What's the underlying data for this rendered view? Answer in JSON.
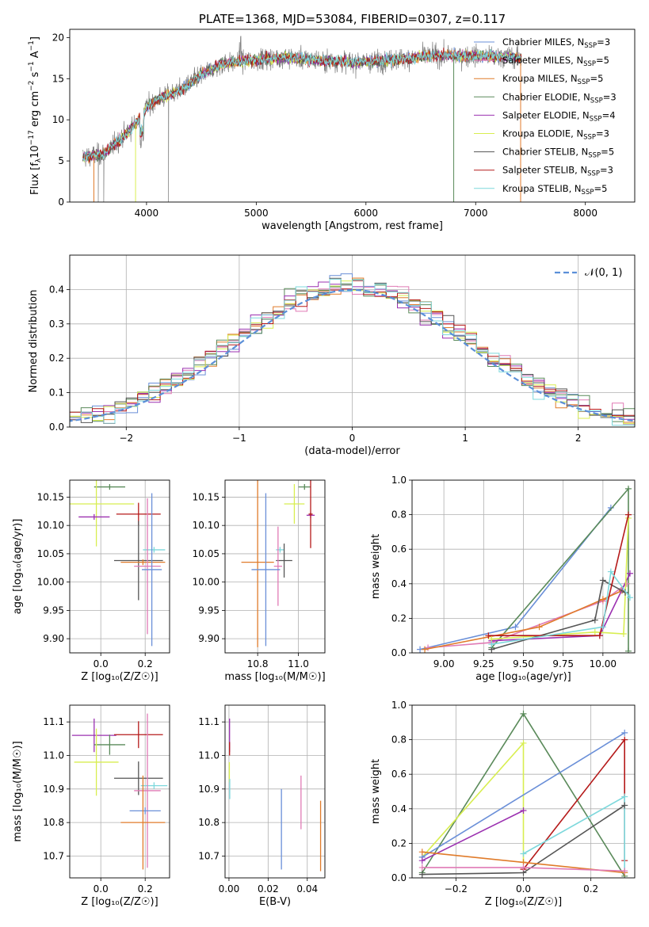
{
  "colors": {
    "chabrier_miles": "#6a8fd8",
    "salpeter_miles": "#e07ab5",
    "kroupa_miles": "#e07b2a",
    "chabrier_elodie": "#5a8a5a",
    "salpeter_elodie": "#9b30b0",
    "kroupa_elodie": "#d8ee50",
    "chabrier_stelib": "#555555",
    "salpeter_stelib": "#b51a1a",
    "kroupa_stelib": "#7dd8dc",
    "normal": "#5b8fd8"
  },
  "chart_data": [
    {
      "id": "spectrum",
      "type": "line",
      "title": "PLATE=1368, MJD=53084, FIBERID=0307, z=0.117",
      "xlabel": "wavelength [Angstrom, rest frame]",
      "ylabel": "Flux [f",
      "ylabel_parts": [
        "Flux [f",
        "λ",
        "10",
        "−17",
        " erg cm",
        "−2",
        " s",
        "−1",
        " A",
        "−1",
        "]"
      ],
      "xlim": [
        3300,
        8450
      ],
      "ylim": [
        0,
        21
      ],
      "xticks": [
        4000,
        5000,
        6000,
        7000,
        8000
      ],
      "yticks": [
        0,
        5,
        10,
        15,
        20
      ],
      "legend_position": "upper-right",
      "legend": [
        {
          "label": "Chabrier MILES, N",
          "n": "3",
          "color_key": "chabrier_miles"
        },
        {
          "label": "Salpeter MILES, N",
          "n": "5",
          "color_key": "salpeter_miles"
        },
        {
          "label": "Kroupa MILES, N",
          "n": "5",
          "color_key": "kroupa_miles"
        },
        {
          "label": "Chabrier ELODIE, N",
          "n": "3",
          "color_key": "chabrier_elodie"
        },
        {
          "label": "Salpeter ELODIE, N",
          "n": "4",
          "color_key": "salpeter_elodie"
        },
        {
          "label": "Kroupa ELODIE, N",
          "n": "3",
          "color_key": "kroupa_elodie"
        },
        {
          "label": "Chabrier STELIB, N",
          "n": "5",
          "color_key": "chabrier_stelib"
        },
        {
          "label": "Salpeter STELIB, N",
          "n": "3",
          "color_key": "salpeter_stelib"
        },
        {
          "label": "Kroupa STELIB, N",
          "n": "5",
          "color_key": "kroupa_stelib"
        }
      ],
      "legend_subscript": "SSP",
      "continuum_knots": [
        [
          3420,
          5.5
        ],
        [
          3600,
          5.8
        ],
        [
          3750,
          7.5
        ],
        [
          3900,
          9.5
        ],
        [
          4000,
          11.5
        ],
        [
          4100,
          12.5
        ],
        [
          4300,
          13.5
        ],
        [
          4500,
          15.5
        ],
        [
          4700,
          16.8
        ],
        [
          5000,
          17.3
        ],
        [
          5300,
          17.6
        ],
        [
          5600,
          17.2
        ],
        [
          5900,
          17.0
        ],
        [
          6200,
          17.2
        ],
        [
          6600,
          17.8
        ],
        [
          7000,
          17.8
        ],
        [
          7400,
          17.6
        ],
        [
          7420,
          17.5
        ]
      ],
      "drops_model": [
        3520,
        3900,
        6800,
        7410
      ],
      "drops_data": [
        3560,
        3610,
        4200
      ]
    },
    {
      "id": "residuals",
      "type": "histogram",
      "xlabel": "(data-model)/error",
      "ylabel": "Normed distribution",
      "xlim": [
        -2.5,
        2.5
      ],
      "ylim": [
        0,
        0.5
      ],
      "xticks": [
        -2,
        -1,
        0,
        1,
        2
      ],
      "yticks": [
        0.0,
        0.1,
        0.2,
        0.3,
        0.4
      ],
      "grid": true,
      "legend_position": "upper-right",
      "legend_label": "𝒩(0, 1)",
      "bin_width": 0.1
    },
    {
      "id": "age_vs_Z",
      "type": "errorbar",
      "xlabel": "Z [log₁₀(Z/Z☉)]",
      "ylabel": "age  [log₁₀(age/yr)]",
      "xlim": [
        -0.14,
        0.31
      ],
      "ylim": [
        9.875,
        10.18
      ],
      "xticks": [
        0.0,
        0.2
      ],
      "yticks": [
        9.9,
        9.95,
        10.0,
        10.05,
        10.1,
        10.15
      ],
      "grid": true,
      "points": [
        {
          "key": "chabrier_elodie",
          "x": 0.04,
          "xerr": 0.07,
          "y": 10.168,
          "yerr": 0.005
        },
        {
          "key": "kroupa_elodie",
          "x": -0.02,
          "xerr": 0.17,
          "y": 10.138,
          "yerr": 0.075
        },
        {
          "key": "salpeter_elodie",
          "x": -0.03,
          "xerr": 0.07,
          "y": 10.115,
          "yerr": 0.005
        },
        {
          "key": "salpeter_stelib",
          "x": 0.17,
          "xerr": 0.1,
          "y": 10.12,
          "yerr": 0.02
        },
        {
          "key": "kroupa_stelib",
          "x": 0.24,
          "xerr": 0.05,
          "y": 10.057,
          "yerr": 0.005
        },
        {
          "key": "chabrier_stelib",
          "x": 0.17,
          "xerr": 0.11,
          "y": 10.038,
          "yerr": 0.07
        },
        {
          "key": "kroupa_miles",
          "x": 0.19,
          "xerr": 0.1,
          "y": 10.035,
          "yerr": 0.005
        },
        {
          "key": "salpeter_miles",
          "x": 0.21,
          "xerr": 0.06,
          "y": 10.028,
          "yerr": 0.12
        },
        {
          "key": "chabrier_miles",
          "x": 0.23,
          "xerr": 0.045,
          "y": 10.022,
          "yerr": 0.135
        }
      ]
    },
    {
      "id": "age_vs_mass",
      "type": "errorbar",
      "xlabel": "mass [log₁₀(M/M☉)]",
      "ylabel": "",
      "xlim": [
        10.64,
        11.13
      ],
      "ylim": [
        9.875,
        10.18
      ],
      "xticks": [
        10.8,
        11.0
      ],
      "yticks": [
        9.9,
        9.95,
        10.0,
        10.05,
        10.1,
        10.15
      ],
      "grid": true,
      "points": [
        {
          "key": "chabrier_elodie",
          "x": 11.03,
          "xerr": 0.03,
          "y": 10.168,
          "yerr": 0.005
        },
        {
          "key": "kroupa_elodie",
          "x": 10.98,
          "xerr": 0.05,
          "y": 10.138,
          "yerr": 0.035
        },
        {
          "key": "salpeter_elodie",
          "x": 11.06,
          "xerr": 0.02,
          "y": 10.118,
          "yerr": 0.005
        },
        {
          "key": "salpeter_stelib",
          "x": 11.06,
          "xerr": 0.01,
          "y": 10.12,
          "yerr": 0.06
        },
        {
          "key": "kroupa_stelib",
          "x": 10.91,
          "xerr": 0.02,
          "y": 10.057,
          "yerr": 0.005
        },
        {
          "key": "chabrier_stelib",
          "x": 10.93,
          "xerr": 0.04,
          "y": 10.038,
          "yerr": 0.03
        },
        {
          "key": "kroupa_miles",
          "x": 10.8,
          "xerr": 0.08,
          "y": 10.035,
          "yerr": 0.15
        },
        {
          "key": "salpeter_miles",
          "x": 10.9,
          "xerr": 0.02,
          "y": 10.028,
          "yerr": 0.07
        },
        {
          "key": "chabrier_miles",
          "x": 10.84,
          "xerr": 0.07,
          "y": 10.022,
          "yerr": 0.135
        }
      ]
    },
    {
      "id": "weight_vs_age",
      "type": "line",
      "xlabel": "age  [log₁₀(age/yr)]",
      "ylabel": "mass weight",
      "xlim": [
        8.8,
        10.2
      ],
      "ylim": [
        0,
        1.0
      ],
      "xticks": [
        9.0,
        9.25,
        9.5,
        9.75,
        10.0
      ],
      "yticks": [
        0.0,
        0.2,
        0.4,
        0.6,
        0.8,
        1.0
      ],
      "grid": true,
      "series": [
        {
          "key": "chabrier_miles",
          "points": [
            [
              8.85,
              0.02
            ],
            [
              9.45,
              0.15
            ],
            [
              10.05,
              0.84
            ]
          ]
        },
        {
          "key": "chabrier_elodie",
          "points": [
            [
              9.3,
              0.03
            ],
            [
              10.16,
              0.95
            ],
            [
              10.16,
              0.01
            ]
          ]
        },
        {
          "key": "salpeter_miles",
          "points": [
            [
              8.9,
              0.03
            ],
            [
              9.3,
              0.06
            ],
            [
              10.0,
              0.3
            ],
            [
              10.15,
              0.4
            ]
          ]
        },
        {
          "key": "kroupa_miles",
          "points": [
            [
              8.88,
              0.02
            ],
            [
              9.6,
              0.15
            ],
            [
              10.0,
              0.31
            ],
            [
              10.12,
              0.36
            ]
          ]
        },
        {
          "key": "salpeter_elodie",
          "points": [
            [
              9.3,
              0.07
            ],
            [
              9.98,
              0.1
            ],
            [
              10.17,
              0.46
            ]
          ]
        },
        {
          "key": "kroupa_elodie",
          "points": [
            [
              9.3,
              0.08
            ],
            [
              9.95,
              0.12
            ],
            [
              10.13,
              0.11
            ],
            [
              10.16,
              0.78
            ]
          ]
        },
        {
          "key": "chabrier_stelib",
          "points": [
            [
              9.3,
              0.02
            ],
            [
              9.95,
              0.19
            ],
            [
              10.0,
              0.42
            ],
            [
              10.14,
              0.35
            ]
          ]
        },
        {
          "key": "salpeter_stelib",
          "points": [
            [
              9.28,
              0.1
            ],
            [
              9.98,
              0.1
            ],
            [
              10.16,
              0.8
            ]
          ]
        },
        {
          "key": "kroupa_stelib",
          "points": [
            [
              9.3,
              0.05
            ],
            [
              10.0,
              0.15
            ],
            [
              10.05,
              0.47
            ],
            [
              10.17,
              0.32
            ]
          ]
        }
      ]
    },
    {
      "id": "mass_vs_Z",
      "type": "errorbar",
      "xlabel": "Z [log₁₀(Z/Z☉)]",
      "ylabel": "mass [log₁₀(M/M☉)]",
      "xlim": [
        -0.14,
        0.31
      ],
      "ylim": [
        10.635,
        11.15
      ],
      "xticks": [
        0.0,
        0.2
      ],
      "yticks": [
        10.7,
        10.8,
        10.9,
        11.0,
        11.1
      ],
      "grid": true,
      "points": [
        {
          "key": "salpeter_elodie",
          "x": -0.03,
          "xerr": 0.1,
          "y": 11.06,
          "yerr": 0.05
        },
        {
          "key": "salpeter_stelib",
          "x": 0.17,
          "xerr": 0.11,
          "y": 11.062,
          "yerr": 0.04
        },
        {
          "key": "chabrier_elodie",
          "x": 0.04,
          "xerr": 0.07,
          "y": 11.032,
          "yerr": 0.03
        },
        {
          "key": "kroupa_elodie",
          "x": -0.02,
          "xerr": 0.1,
          "y": 10.98,
          "yerr": 0.1
        },
        {
          "key": "chabrier_stelib",
          "x": 0.17,
          "xerr": 0.11,
          "y": 10.932,
          "yerr": 0.05
        },
        {
          "key": "kroupa_stelib",
          "x": 0.24,
          "xerr": 0.06,
          "y": 10.91,
          "yerr": 0.01
        },
        {
          "key": "salpeter_miles",
          "x": 0.21,
          "xerr": 0.06,
          "y": 10.895,
          "yerr": 0.23
        },
        {
          "key": "chabrier_miles",
          "x": 0.2,
          "xerr": 0.07,
          "y": 10.835,
          "yerr": 0.01
        },
        {
          "key": "kroupa_miles",
          "x": 0.19,
          "xerr": 0.1,
          "y": 10.8,
          "yerr": 0.14
        }
      ]
    },
    {
      "id": "mass_vs_EBV",
      "type": "errorbar",
      "xlabel": "E(B-V)",
      "ylabel": "",
      "xlim": [
        -0.002,
        0.049
      ],
      "ylim": [
        10.635,
        11.15
      ],
      "xticks": [
        0.0,
        0.02,
        0.04
      ],
      "yticks": [
        10.7,
        10.8,
        10.9,
        11.0,
        11.1
      ],
      "grid": true,
      "points": [
        {
          "key": "salpeter_elodie",
          "x": 0.0003,
          "xerr": 0,
          "y": 11.06,
          "yerr": 0.05
        },
        {
          "key": "salpeter_stelib",
          "x": 0.0003,
          "xerr": 0,
          "y": 11.02,
          "yerr": 0.02
        },
        {
          "key": "kroupa_elodie",
          "x": 0.0002,
          "xerr": 0,
          "y": 10.95,
          "yerr": 0.03
        },
        {
          "key": "kroupa_stelib",
          "x": 0.0004,
          "xerr": 0,
          "y": 10.9,
          "yerr": 0.03
        },
        {
          "key": "chabrier_miles",
          "x": 0.0268,
          "xerr": 0,
          "y": 10.78,
          "yerr": 0.12
        },
        {
          "key": "salpeter_miles",
          "x": 0.0368,
          "xerr": 0,
          "y": 10.86,
          "yerr": 0.08
        },
        {
          "key": "kroupa_miles",
          "x": 0.0468,
          "xerr": 0,
          "y": 10.76,
          "yerr": 0.105
        }
      ]
    },
    {
      "id": "weight_vs_Z",
      "type": "line",
      "xlabel": "Z [log₁₀(Z/Z☉)]",
      "ylabel": "mass weight",
      "xlim": [
        -0.33,
        0.33
      ],
      "ylim": [
        0,
        1.0
      ],
      "xticks": [
        -0.2,
        0.0,
        0.2
      ],
      "yticks": [
        0.0,
        0.2,
        0.4,
        0.6,
        0.8,
        1.0
      ],
      "grid": true,
      "series": [
        {
          "key": "chabrier_elodie",
          "points": [
            [
              -0.3,
              0.03
            ],
            [
              0.0,
              0.95
            ],
            [
              0.3,
              0.01
            ]
          ]
        },
        {
          "key": "kroupa_elodie",
          "points": [
            [
              -0.3,
              0.12
            ],
            [
              0.0,
              0.78
            ],
            [
              0.0,
              0.09
            ]
          ]
        },
        {
          "key": "chabrier_miles",
          "points": [
            [
              -0.3,
              0.12
            ],
            [
              0.3,
              0.84
            ]
          ]
        },
        {
          "key": "salpeter_stelib",
          "points": [
            [
              0.0,
              0.05
            ],
            [
              0.3,
              0.8
            ],
            [
              0.3,
              0.1
            ]
          ]
        },
        {
          "key": "salpeter_elodie",
          "points": [
            [
              -0.3,
              0.1
            ],
            [
              0.0,
              0.39
            ]
          ]
        },
        {
          "key": "kroupa_stelib",
          "points": [
            [
              0.0,
              0.14
            ],
            [
              0.3,
              0.47
            ],
            [
              0.3,
              0.03
            ]
          ]
        },
        {
          "key": "chabrier_stelib",
          "points": [
            [
              -0.3,
              0.02
            ],
            [
              0.0,
              0.03
            ],
            [
              0.3,
              0.42
            ]
          ]
        },
        {
          "key": "kroupa_miles",
          "points": [
            [
              -0.3,
              0.15
            ],
            [
              0.0,
              0.09
            ],
            [
              0.3,
              0.03
            ]
          ]
        },
        {
          "key": "salpeter_miles",
          "points": [
            [
              -0.3,
              0.06
            ],
            [
              0.0,
              0.06
            ],
            [
              0.3,
              0.04
            ]
          ]
        }
      ]
    }
  ]
}
